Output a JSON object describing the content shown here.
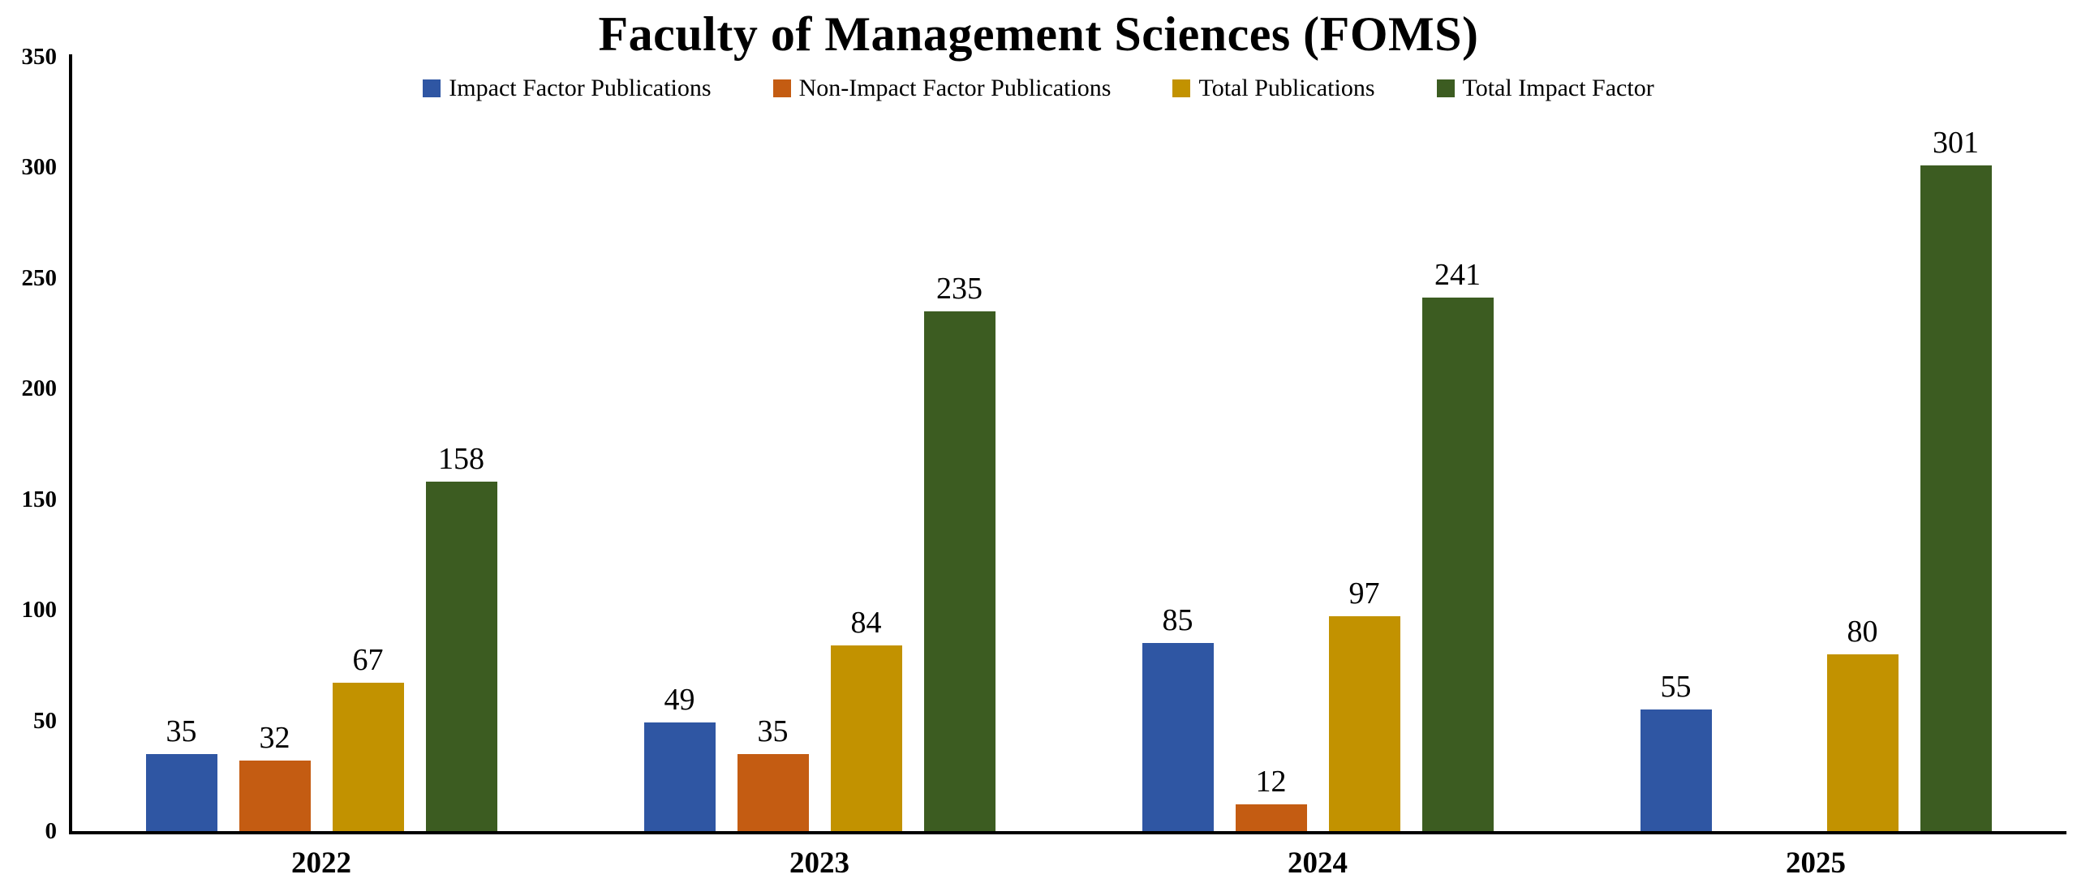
{
  "title": "Faculty of Management Sciences (FOMS)",
  "background": "#FFFFFF",
  "axis_color": "#000000",
  "chart_data": {
    "type": "bar",
    "title": "Faculty of Management Sciences (FOMS)",
    "categories": [
      "2022",
      "2023",
      "2024",
      "2025"
    ],
    "series": [
      {
        "name": "Impact Factor Publications",
        "color": "#2F56A3",
        "values": [
          35,
          49,
          85,
          55
        ]
      },
      {
        "name": "Non-Impact Factor Publications",
        "color": "#C45C12",
        "values": [
          32,
          35,
          12,
          null
        ]
      },
      {
        "name": "Total Publications",
        "color": "#C29200",
        "values": [
          67,
          84,
          97,
          80
        ]
      },
      {
        "name": "Total Impact Factor",
        "color": "#3C5C21",
        "values": [
          158,
          235,
          241,
          301
        ]
      }
    ],
    "ylim": [
      0,
      350
    ],
    "y_ticks": [
      0,
      50,
      100,
      150,
      200,
      250,
      300,
      350
    ],
    "grid": false,
    "legend_position": "top",
    "data_labels": true
  }
}
